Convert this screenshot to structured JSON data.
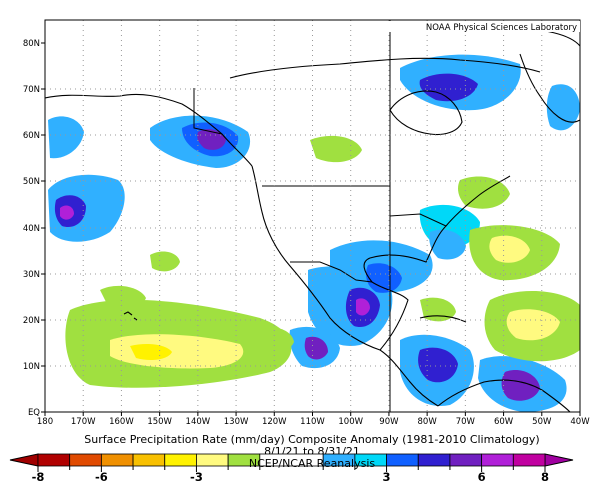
{
  "map": {
    "credit": "NOAA Physical Sciences Laboratory",
    "title": "Surface Precipitation Rate (mm/day) Composite Anomaly (1981-2010 Climatology)",
    "date_range": "8/1/21 to 8/31/21",
    "source": "NCEP/NCAR Reanalysis",
    "lat_labels": [
      "80N",
      "70N",
      "60N",
      "50N",
      "40N",
      "30N",
      "20N",
      "10N",
      "EQ"
    ],
    "lon_labels": [
      "180",
      "170W",
      "160W",
      "150W",
      "140W",
      "130W",
      "120W",
      "110W",
      "100W",
      "90W",
      "80W",
      "70W",
      "60W",
      "50W",
      "40W"
    ],
    "colorbar": {
      "tick_labels": [
        "-8",
        "-6",
        "-3",
        "3",
        "6",
        "8"
      ],
      "tick_values": [
        -8,
        -6,
        -3,
        3,
        6,
        8
      ],
      "minor_tick_values": [
        -7,
        -5,
        -4,
        -2,
        -1,
        1,
        2,
        4,
        5,
        7
      ],
      "color_bins": [
        {
          "from": -8,
          "to": -7,
          "color": "#b00000"
        },
        {
          "from": -7,
          "to": -6,
          "color": "#e04a00"
        },
        {
          "from": -6,
          "to": -5,
          "color": "#f09000"
        },
        {
          "from": -5,
          "to": -4,
          "color": "#f8c000"
        },
        {
          "from": -4,
          "to": -3,
          "color": "#fff200"
        },
        {
          "from": -3,
          "to": -2,
          "color": "#fffa80"
        },
        {
          "from": -2,
          "to": -1,
          "color": "#a0e040"
        },
        {
          "from": -1,
          "to": 1,
          "color": "#ffffff"
        },
        {
          "from": 1,
          "to": 2,
          "color": "#30b0ff"
        },
        {
          "from": 2,
          "to": 3,
          "color": "#00d8f8"
        },
        {
          "from": 3,
          "to": 4,
          "color": "#1060ff"
        },
        {
          "from": 4,
          "to": 5,
          "color": "#3020d0"
        },
        {
          "from": 5,
          "to": 6,
          "color": "#7020c0"
        },
        {
          "from": 6,
          "to": 7,
          "color": "#b020d8"
        },
        {
          "from": 7,
          "to": 8,
          "color": "#c000a0"
        }
      ],
      "low_arrow_color": "#a00000",
      "high_arrow_color": "#a000a0"
    }
  }
}
